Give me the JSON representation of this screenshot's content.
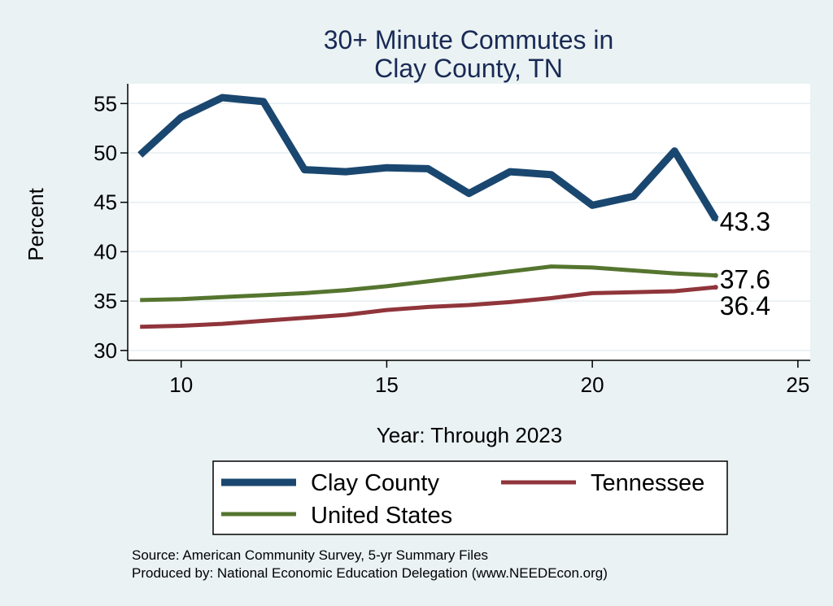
{
  "chart_data": {
    "type": "line",
    "title": [
      "30+ Minute Commutes in",
      "Clay County, TN"
    ],
    "xlabel": "Year: Through 2023",
    "ylabel": "Percent",
    "xlim": [
      8.7,
      25.3
    ],
    "ylim": [
      29,
      57
    ],
    "xticks": [
      10,
      15,
      20,
      25
    ],
    "yticks": [
      30,
      35,
      40,
      45,
      50,
      55
    ],
    "grid": true,
    "x": [
      9,
      10,
      11,
      12,
      13,
      14,
      15,
      16,
      17,
      18,
      19,
      20,
      21,
      22,
      23
    ],
    "series": [
      {
        "name": "Clay County",
        "color": "#1a476f",
        "values": [
          49.8,
          53.6,
          55.6,
          55.2,
          48.3,
          48.1,
          48.5,
          48.4,
          45.9,
          48.1,
          47.8,
          44.7,
          45.6,
          50.2,
          43.3
        ],
        "end_label": "43.3"
      },
      {
        "name": "Tennessee",
        "color": "#90353b",
        "values": [
          32.4,
          32.5,
          32.7,
          33.0,
          33.3,
          33.6,
          34.1,
          34.4,
          34.6,
          34.9,
          35.3,
          35.8,
          35.9,
          36.0,
          36.4
        ],
        "end_label": "36.4"
      },
      {
        "name": "United States",
        "color": "#55752f",
        "values": [
          35.1,
          35.2,
          35.4,
          35.6,
          35.8,
          36.1,
          36.5,
          37.0,
          37.5,
          38.0,
          38.5,
          38.4,
          38.1,
          37.8,
          37.6
        ],
        "end_label": "37.6"
      }
    ],
    "legend": {
      "placement": "bottom",
      "entries": [
        "Clay County",
        "Tennessee",
        "United States"
      ]
    },
    "notes": [
      "Source: American Community Survey, 5-yr Summary Files",
      "Produced by: National Economic Education Delegation (www.NEEDEcon.org)"
    ]
  }
}
